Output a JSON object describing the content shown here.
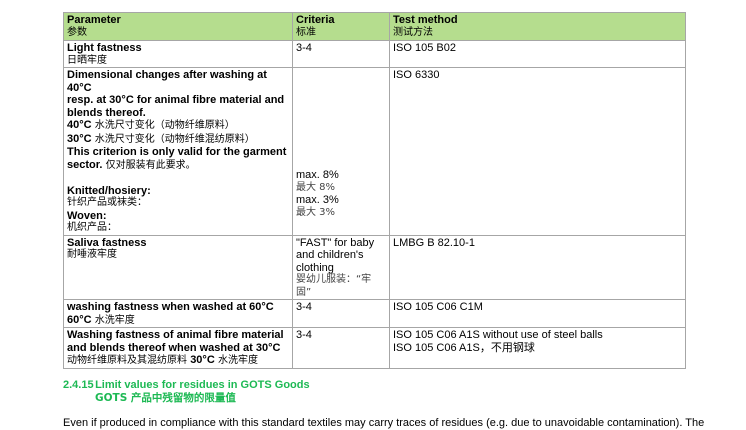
{
  "table": {
    "headers": [
      {
        "en": "Parameter",
        "zh": "参数"
      },
      {
        "en": "Criteria",
        "zh": "标准"
      },
      {
        "en": "Test method",
        "zh": "测试方法"
      }
    ],
    "rows": [
      {
        "param_en": "Light fastness",
        "param_zh": "日晒牢度",
        "criteria": "3-4",
        "method": "ISO 105 B02"
      },
      {
        "param_lines": [
          "Dimensional changes after washing at 40°C",
          "resp. at 30°C for animal fibre material and",
          "blends thereof."
        ],
        "zh1_b": "40°C",
        "zh1": " 水洗尺寸变化（动物纤维原料）",
        "zh2_b": "30°C",
        "zh2": " 水洗尺寸变化（动物纤维混纺原料）",
        "note_line1": "This criterion is only valid for the garment",
        "note_b": "sector.",
        "note_zh": " 仅对服装有此要求。",
        "knitted": "Knitted/hosiery:",
        "knitted_zh": "针织产品或袜类：",
        "woven": "Woven:",
        "woven_zh": "机织产品：",
        "criteria": [
          "max. 8%",
          "最大 8%",
          "max. 3%",
          "最大 3%"
        ],
        "method": "ISO 6330"
      },
      {
        "param_en": "Saliva fastness",
        "param_zh": "耐唾液牢度",
        "criteria": [
          "\"FAST\" for baby",
          "and children's",
          "clothing"
        ],
        "criteria_zh": [
          "婴幼儿服装：“牢",
          "固”"
        ],
        "method": "LMBG B 82.10-1"
      },
      {
        "param_en": "washing fastness when washed at 60°C",
        "param_zh_b": "60°C",
        "param_zh": " 水洗牢度",
        "criteria": "3-4",
        "method": "ISO 105 C06 C1M"
      },
      {
        "param_en": [
          "Washing fastness of animal fibre material",
          "and blends thereof when washed at 30°C"
        ],
        "param_zh": "动物纤维原料及其混纺原料 ",
        "param_zh_b": "30°C",
        "param_zh2": " 水洗牢度",
        "criteria": "3-4",
        "method": [
          "ISO 105 C06 A1S without use of steel balls",
          "ISO 105 C06 A1S，不用钢球"
        ]
      }
    ]
  },
  "section": {
    "number": "2.4.15",
    "title": "Limit values for residues in GOTS Goods",
    "title_zh": "GOTS 产品中残留物的限量值",
    "color": "#1db954"
  },
  "paragraph": "Even if produced in compliance with this standard textiles may carry traces of residues (e.g. due to unavoidable contamination). The"
}
